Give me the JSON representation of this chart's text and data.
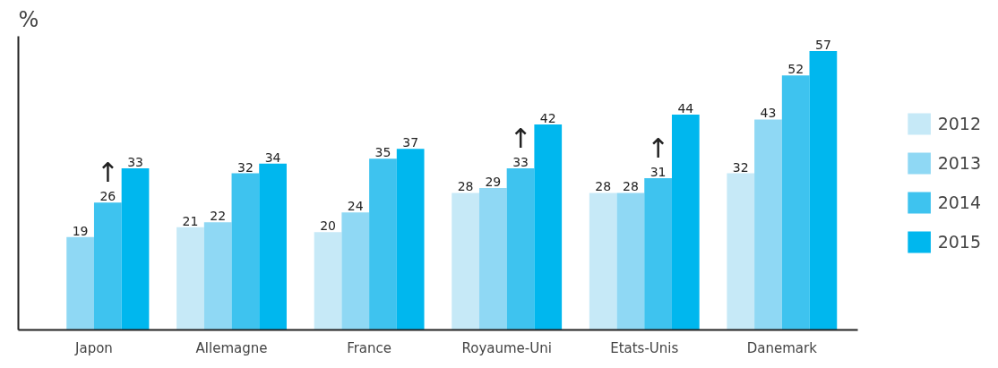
{
  "chart_data": {
    "type": "bar",
    "ylabel": "%",
    "categories": [
      "Japon",
      "Allemagne",
      "France",
      "Royaume-Uni",
      "Etats-Unis",
      "Danemark"
    ],
    "series": [
      {
        "name": "2012",
        "color": "#c6e9f7",
        "values": [
          null,
          21,
          20,
          28,
          28,
          32
        ]
      },
      {
        "name": "2013",
        "color": "#8fd8f4",
        "values": [
          19,
          22,
          24,
          29,
          28,
          43
        ]
      },
      {
        "name": "2014",
        "color": "#3ec3ef",
        "values": [
          26,
          32,
          35,
          33,
          31,
          52
        ]
      },
      {
        "name": "2015",
        "color": "#00b7ee",
        "values": [
          33,
          34,
          37,
          42,
          44,
          57
        ]
      }
    ],
    "ylim": [
      0,
      60
    ],
    "data_labels": true,
    "legend": "right",
    "tick_labels": "x",
    "grid": false,
    "annotations": [
      {
        "text": "↑",
        "x": "Japon",
        "y": 26
      },
      {
        "text": "↑",
        "x": "Royaume-Uni",
        "y": 33
      },
      {
        "text": "↑",
        "x": "Etats-Unis",
        "y": 31
      }
    ]
  }
}
